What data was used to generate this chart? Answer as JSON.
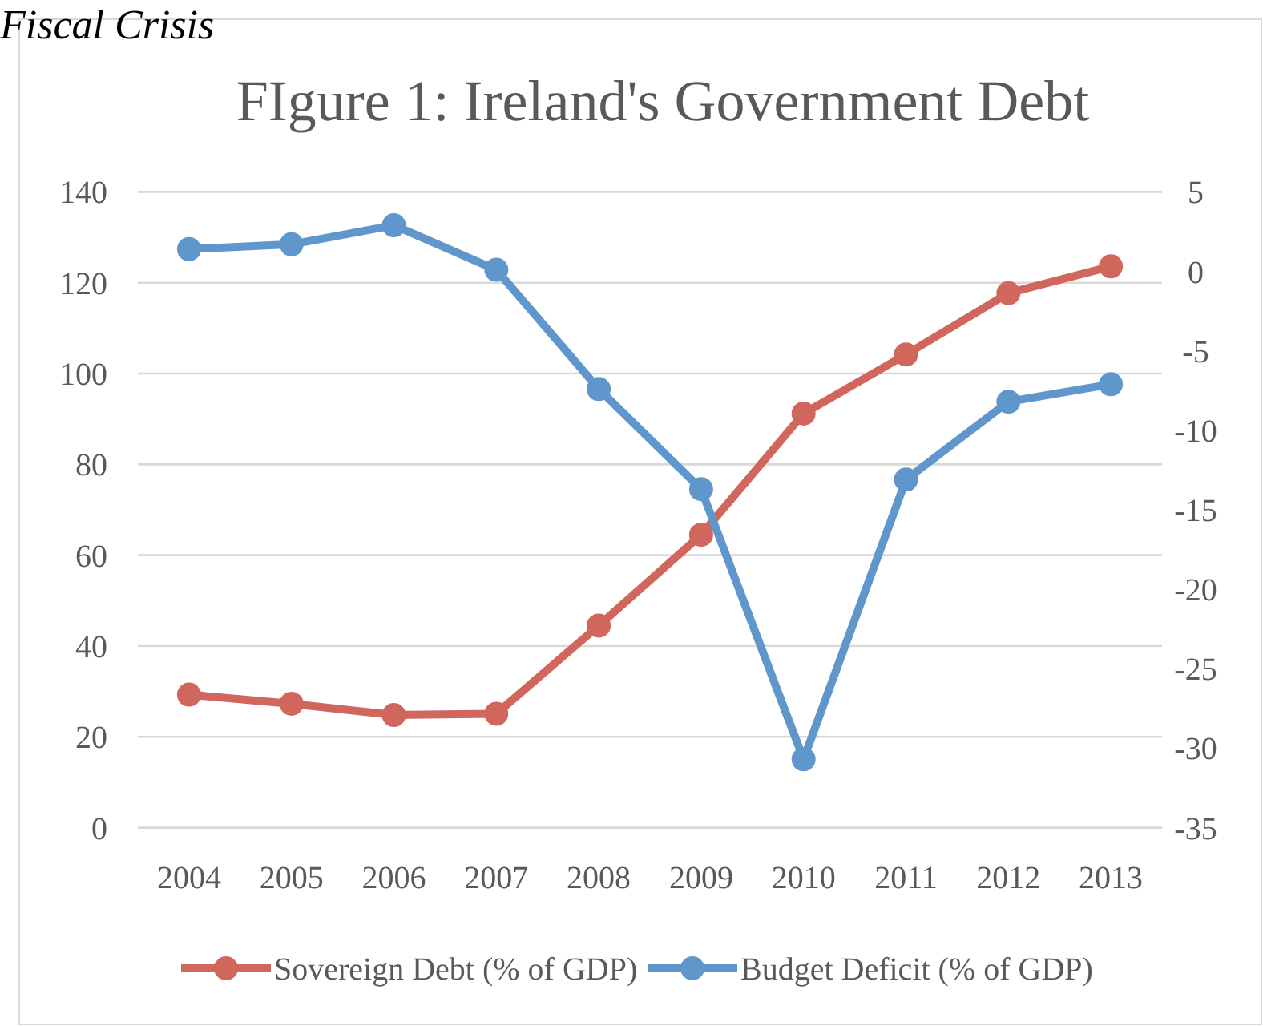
{
  "chart_data": {
    "type": "line",
    "title": "FIgure 1: Ireland's Government Debt",
    "annotations": [
      "Fiscal Crisis"
    ],
    "categories": [
      "2004",
      "2005",
      "2006",
      "2007",
      "2008",
      "2009",
      "2010",
      "2011",
      "2012",
      "2013"
    ],
    "series": [
      {
        "name": "Sovereign Debt (% of GDP)",
        "color": "#d0665c",
        "values": [
          29.3,
          27.3,
          24.8,
          25.1,
          44.5,
          64.5,
          91.2,
          104.2,
          117.7,
          123.6
        ]
      },
      {
        "name": "Budget Deficit (% of GDP)",
        "color": "#5f97cc",
        "axis": "y2",
        "values": [
          1.4,
          1.7,
          2.9,
          0.1,
          -7.4,
          -13.7,
          -30.7,
          -13.1,
          -8.2,
          -7.1
        ]
      }
    ],
    "ylim": [
      0,
      140
    ],
    "yticks": [
      0,
      20,
      40,
      60,
      80,
      100,
      120,
      140
    ],
    "y2lim": [
      -35,
      5
    ],
    "y2ticks": [
      -35,
      -30,
      -25,
      -20,
      -15,
      -10,
      -5,
      0,
      5
    ],
    "grid": "y",
    "legend": "bottom",
    "marker": "circle",
    "line_style": "solid"
  }
}
